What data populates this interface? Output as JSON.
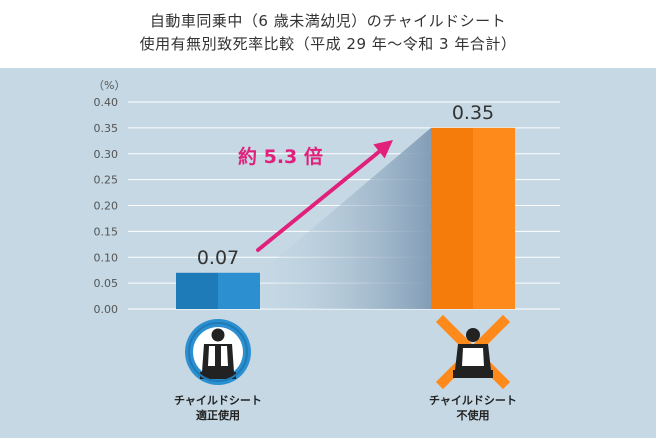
{
  "header": {
    "title_line1": "自動車同乗中（6 歳未満幼児）のチャイルドシート",
    "title_line2": "使用有無別致死率比較（平成 29 年〜令和 3 年合計）"
  },
  "chart_data": {
    "type": "bar",
    "title": "自動車同乗中（6 歳未満幼児）のチャイルドシート 使用有無別致死率比較（平成 29 年〜令和 3 年合計）",
    "yunit": "（%）",
    "ylim": [
      0,
      0.4
    ],
    "yticks": [
      "0.40",
      "0.35",
      "0.30",
      "0.25",
      "0.20",
      "0.15",
      "0.10",
      "0.05",
      "0.00"
    ],
    "categories": [
      [
        "チャイルドシート",
        "適正使用"
      ],
      [
        "チャイルドシート",
        "不使用"
      ]
    ],
    "values": [
      0.07,
      0.35
    ],
    "value_labels": [
      "0.07",
      "0.35"
    ],
    "annotation": "約 5.3 倍",
    "grid": true,
    "colors": {
      "bar_used": "#2b8fd0",
      "bar_used_dark": "#1f7ab8",
      "bar_unused": "#ff8a1c",
      "bar_unused_dark": "#f57c0a",
      "arrow": "#e0207a",
      "panel": "#c5d8e4",
      "grid": "#ffffff"
    }
  },
  "icons": [
    "child-seat-used-icon",
    "child-seat-unused-icon"
  ]
}
